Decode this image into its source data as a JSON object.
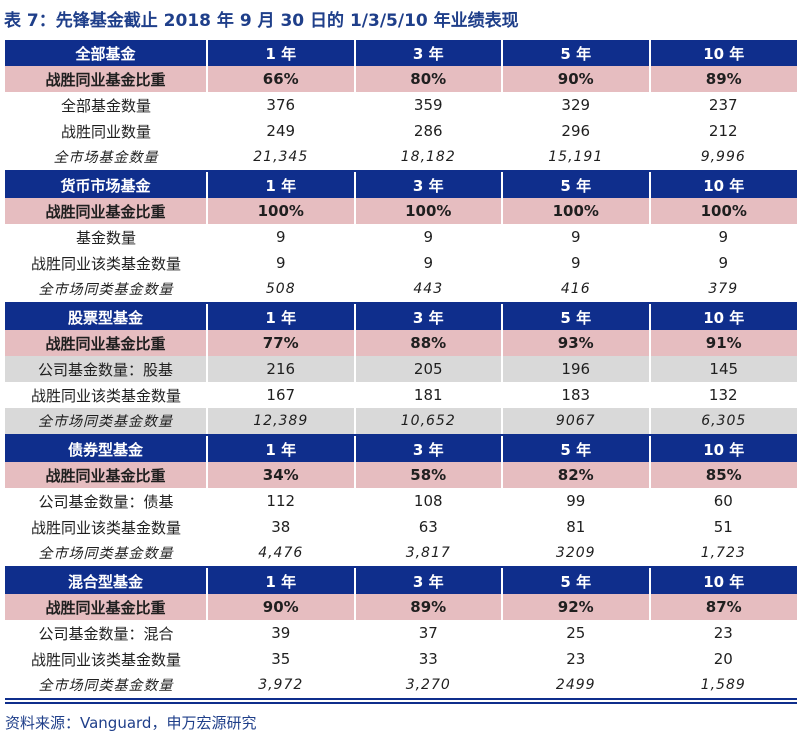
{
  "title": "表 7：先锋基金截止 2018 年 9 月 30 日的 1/3/5/10 年业绩表现",
  "periods": [
    "1 年",
    "3 年",
    "5 年",
    "10 年"
  ],
  "sections": [
    {
      "name": "全部基金",
      "rows": [
        {
          "label": "战胜同业基金比重",
          "style": "pink",
          "values": [
            "66%",
            "80%",
            "90%",
            "89%"
          ]
        },
        {
          "label": "全部基金数量",
          "style": "plain",
          "values": [
            "376",
            "359",
            "329",
            "237"
          ]
        },
        {
          "label": "战胜同业数量",
          "style": "plain",
          "values": [
            "249",
            "286",
            "296",
            "212"
          ]
        },
        {
          "label": "全市场基金数量",
          "style": "italic",
          "values": [
            "21,345",
            "18,182",
            "15,191",
            "9,996"
          ]
        }
      ]
    },
    {
      "name": "货币市场基金",
      "rows": [
        {
          "label": "战胜同业基金比重",
          "style": "pink",
          "values": [
            "100%",
            "100%",
            "100%",
            "100%"
          ]
        },
        {
          "label": "基金数量",
          "style": "plain",
          "values": [
            "9",
            "9",
            "9",
            "9"
          ]
        },
        {
          "label": "战胜同业该类基金数量",
          "style": "plain",
          "values": [
            "9",
            "9",
            "9",
            "9"
          ]
        },
        {
          "label": "全市场同类基金数量",
          "style": "italic",
          "values": [
            "508",
            "443",
            "416",
            "379"
          ]
        }
      ]
    },
    {
      "name": "股票型基金",
      "rows": [
        {
          "label": "战胜同业基金比重",
          "style": "pink",
          "values": [
            "77%",
            "88%",
            "93%",
            "91%"
          ]
        },
        {
          "label": "公司基金数量：股基",
          "style": "gray",
          "values": [
            "216",
            "205",
            "196",
            "145"
          ]
        },
        {
          "label": "战胜同业该类基金数量",
          "style": "plain",
          "values": [
            "167",
            "181",
            "183",
            "132"
          ]
        },
        {
          "label": "全市场同类基金数量",
          "style": "italic-gray",
          "values": [
            "12,389",
            "10,652",
            "9067",
            "6,305"
          ]
        }
      ]
    },
    {
      "name": "债券型基金",
      "rows": [
        {
          "label": "战胜同业基金比重",
          "style": "pink",
          "values": [
            "34%",
            "58%",
            "82%",
            "85%"
          ]
        },
        {
          "label": "公司基金数量：债基",
          "style": "plain",
          "values": [
            "112",
            "108",
            "99",
            "60"
          ]
        },
        {
          "label": "战胜同业该类基金数量",
          "style": "plain",
          "values": [
            "38",
            "63",
            "81",
            "51"
          ]
        },
        {
          "label": "全市场同类基金数量",
          "style": "italic",
          "values": [
            "4,476",
            "3,817",
            "3209",
            "1,723"
          ]
        }
      ]
    },
    {
      "name": "混合型基金",
      "rows": [
        {
          "label": "战胜同业基金比重",
          "style": "pink",
          "values": [
            "90%",
            "89%",
            "92%",
            "87%"
          ]
        },
        {
          "label": "公司基金数量：混合",
          "style": "plain",
          "values": [
            "39",
            "37",
            "25",
            "23"
          ]
        },
        {
          "label": "战胜同业该类基金数量",
          "style": "plain",
          "values": [
            "35",
            "33",
            "23",
            "20"
          ]
        },
        {
          "label": "全市场同类基金数量",
          "style": "italic",
          "values": [
            "3,972",
            "3,270",
            "2499",
            "1,589"
          ]
        }
      ]
    }
  ],
  "source": "资料来源：Vanguard，申万宏源研究",
  "colors": {
    "header_bg": "#0f2e8c",
    "highlight_bg": "#e6bdc0",
    "gray_bg": "#d9d9d9",
    "title_text": "#1f3f8a"
  }
}
